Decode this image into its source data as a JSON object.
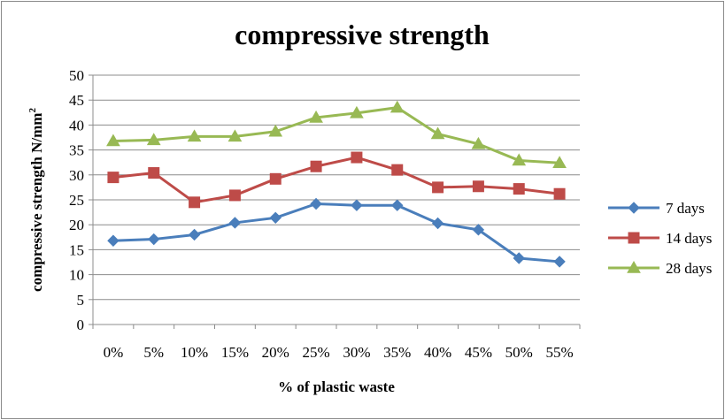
{
  "chart_data": {
    "type": "line",
    "title": "compressive strength",
    "xlabel": "% of plastic waste",
    "ylabel": "compressive strength N/mm",
    "ylabel_superscript": "2",
    "categories": [
      "0%",
      "5%",
      "10%",
      "15%",
      "20%",
      "25%",
      "30%",
      "35%",
      "40%",
      "45%",
      "50%",
      "55%"
    ],
    "ylim": [
      0,
      50
    ],
    "yticks": [
      0,
      5,
      10,
      15,
      20,
      25,
      30,
      35,
      40,
      45,
      50
    ],
    "grid": true,
    "legend_position": "right",
    "series": [
      {
        "name": "7 days",
        "color": "#4A7EBB",
        "marker": "diamond",
        "values": [
          16.8,
          17.1,
          18.0,
          20.4,
          21.4,
          24.2,
          23.9,
          23.9,
          20.3,
          19.0,
          13.3,
          12.6
        ]
      },
      {
        "name": "14 days",
        "color": "#BE4B48",
        "marker": "square",
        "values": [
          29.5,
          30.4,
          24.5,
          25.9,
          29.2,
          31.7,
          33.5,
          31.0,
          27.5,
          27.7,
          27.2,
          26.2
        ]
      },
      {
        "name": "28 days",
        "color": "#98B954",
        "marker": "triangle",
        "values": [
          36.8,
          37.0,
          37.7,
          37.7,
          38.7,
          41.5,
          42.4,
          43.5,
          38.2,
          36.2,
          32.9,
          32.4
        ]
      }
    ]
  }
}
